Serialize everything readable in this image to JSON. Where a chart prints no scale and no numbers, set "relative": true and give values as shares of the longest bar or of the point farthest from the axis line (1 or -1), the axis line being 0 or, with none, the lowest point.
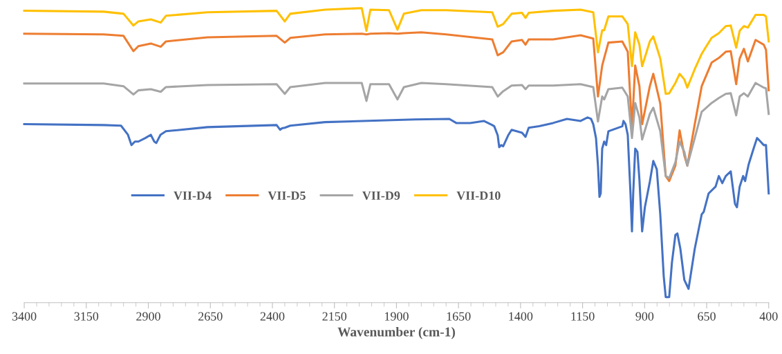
{
  "chart_data": {
    "type": "line",
    "relative": true,
    "xlabel": "Wavenumber (cm-1)",
    "xlim": [
      3400,
      400
    ],
    "xticks": [
      3400,
      {
        "value": 3350,
        "label": null
      },
      {
        "value": 3300,
        "label": null
      },
      {
        "value": 3250,
        "label": null
      },
      {
        "value": 3200,
        "label": null
      },
      3150,
      {
        "value": 3100,
        "label": null
      },
      {
        "value": 3050,
        "label": null
      },
      {
        "value": 3000,
        "label": null
      },
      {
        "value": 2950,
        "label": null
      },
      2900,
      {
        "value": 2850,
        "label": null
      },
      {
        "value": 2800,
        "label": null
      },
      {
        "value": 2750,
        "label": null
      },
      {
        "value": 2700,
        "label": null
      },
      2650,
      {
        "value": 2600,
        "label": null
      },
      {
        "value": 2550,
        "label": null
      },
      {
        "value": 2500,
        "label": null
      },
      {
        "value": 2450,
        "label": null
      },
      2400,
      {
        "value": 2350,
        "label": null
      },
      {
        "value": 2300,
        "label": null
      },
      {
        "value": 2250,
        "label": null
      },
      {
        "value": 2200,
        "label": null
      },
      2150,
      {
        "value": 2100,
        "label": null
      },
      {
        "value": 2050,
        "label": null
      },
      {
        "value": 2000,
        "label": null
      },
      {
        "value": 1950,
        "label": null
      },
      1900,
      {
        "value": 1850,
        "label": null
      },
      {
        "value": 1800,
        "label": null
      },
      {
        "value": 1750,
        "label": null
      },
      {
        "value": 1700,
        "label": null
      },
      1650,
      {
        "value": 1600,
        "label": null
      },
      {
        "value": 1550,
        "label": null
      },
      {
        "value": 1500,
        "label": null
      },
      {
        "value": 1450,
        "label": null
      },
      1400,
      {
        "value": 1350,
        "label": null
      },
      {
        "value": 1300,
        "label": null
      },
      {
        "value": 1250,
        "label": null
      },
      {
        "value": 1200,
        "label": null
      },
      1150,
      {
        "value": 1100,
        "label": null
      },
      {
        "value": 1050,
        "label": null
      },
      {
        "value": 1000,
        "label": null
      },
      {
        "value": 950,
        "label": null
      },
      900,
      {
        "value": 850,
        "label": null
      },
      {
        "value": 800,
        "label": null
      },
      {
        "value": 750,
        "label": null
      },
      {
        "value": 700,
        "label": null
      },
      650,
      {
        "value": 600,
        "label": null
      },
      {
        "value": 550,
        "label": null
      },
      {
        "value": 500,
        "label": null
      },
      {
        "value": 450,
        "label": null
      },
      400
    ],
    "grid": false,
    "legend": "left",
    "tick_labels": "x",
    "x": [
      3400,
      3080,
      3000,
      2960,
      2940,
      2890,
      2850,
      2829,
      2662,
      2383,
      2350,
      2328,
      2188,
      2040,
      2021,
      2005,
      1930,
      1896,
      1870,
      1800,
      1700,
      1514,
      1492,
      1470,
      1436,
      1394,
      1380,
      1367,
      1269,
      1158,
      1107,
      1088,
      1071,
      1063,
      1046,
      990,
      968,
      951,
      938,
      921,
      910,
      879,
      865,
      837,
      815,
      801,
      776,
      759,
      740,
      728,
      698,
      670,
      630,
      601,
      573,
      553,
      531,
      517,
      500,
      484,
      453,
      420,
      411,
      400
    ],
    "series": [
      {
        "name": "VII-D4",
        "color": "#4472c4",
        "x": [
          3400,
          3080,
          3010,
          2982,
          2968,
          2954,
          2940,
          2912,
          2890,
          2876,
          2868,
          2851,
          2829,
          2662,
          2383,
          2369,
          2361,
          2350,
          2328,
          2188,
          1826,
          1687,
          1659,
          1603,
          1548,
          1514,
          1506,
          1492,
          1486,
          1478,
          1470,
          1450,
          1436,
          1394,
          1380,
          1367,
          1325,
          1269,
          1213,
          1158,
          1130,
          1116,
          1107,
          1096,
          1088,
          1082,
          1077,
          1071,
          1063,
          1055,
          1046,
          990,
          985,
          977,
          968,
          957,
          951,
          946,
          938,
          929,
          921,
          910,
          899,
          879,
          865,
          851,
          837,
          823,
          815,
          801,
          790,
          776,
          768,
          756,
          740,
          723,
          698,
          670,
          662,
          642,
          614,
          601,
          587,
          573,
          553,
          536,
          528,
          517,
          503,
          495,
          481,
          461,
          447,
          433,
          420,
          411,
          400
        ],
        "values": [
          0.606,
          0.603,
          0.601,
          0.57,
          0.535,
          0.547,
          0.547,
          0.559,
          0.57,
          0.547,
          0.542,
          0.57,
          0.582,
          0.596,
          0.603,
          0.587,
          0.592,
          0.594,
          0.601,
          0.613,
          0.622,
          0.624,
          0.61,
          0.61,
          0.617,
          0.603,
          0.599,
          0.568,
          0.528,
          0.535,
          0.531,
          0.568,
          0.587,
          0.577,
          0.563,
          0.594,
          0.599,
          0.61,
          0.624,
          0.617,
          0.629,
          0.624,
          0.606,
          0.559,
          0.465,
          0.359,
          0.371,
          0.523,
          0.547,
          0.535,
          0.582,
          0.599,
          0.617,
          0.606,
          0.57,
          0.371,
          0.242,
          0.371,
          0.523,
          0.512,
          0.418,
          0.242,
          0.324,
          0.411,
          0.481,
          0.453,
          0.3,
          0.089,
          0.019,
          0.019,
          0.136,
          0.23,
          0.235,
          0.183,
          0.077,
          0.047,
          0.183,
          0.3,
          0.308,
          0.371,
          0.394,
          0.43,
          0.406,
          0.43,
          0.446,
          0.336,
          0.324,
          0.394,
          0.43,
          0.413,
          0.469,
          0.523,
          0.559,
          0.547,
          0.535,
          0.535,
          0.371
        ]
      },
      {
        "name": "VII-D5",
        "color": "#ed7d31",
        "values": [
          0.913,
          0.911,
          0.906,
          0.854,
          0.871,
          0.88,
          0.869,
          0.887,
          0.901,
          0.906,
          0.883,
          0.899,
          0.911,
          0.913,
          0.911,
          0.913,
          0.915,
          0.913,
          0.915,
          0.918,
          0.911,
          0.894,
          0.84,
          0.85,
          0.887,
          0.892,
          0.876,
          0.894,
          0.894,
          0.908,
          0.897,
          0.7,
          0.805,
          0.831,
          0.883,
          0.887,
          0.852,
          0.594,
          0.805,
          0.735,
          0.606,
          0.735,
          0.777,
          0.676,
          0.43,
          0.413,
          0.465,
          0.585,
          0.5,
          0.465,
          0.606,
          0.735,
          0.815,
          0.831,
          0.852,
          0.854,
          0.742,
          0.829,
          0.862,
          0.819,
          0.892,
          0.876,
          0.859,
          0.721
        ]
      },
      {
        "name": "VII-D9",
        "color": "#a5a5a5",
        "values": [
          0.744,
          0.744,
          0.735,
          0.707,
          0.721,
          0.725,
          0.716,
          0.732,
          0.739,
          0.742,
          0.709,
          0.732,
          0.746,
          0.746,
          0.685,
          0.742,
          0.742,
          0.69,
          0.732,
          0.746,
          0.742,
          0.732,
          0.7,
          0.718,
          0.737,
          0.739,
          0.725,
          0.737,
          0.737,
          0.742,
          0.732,
          0.615,
          0.7,
          0.69,
          0.725,
          0.73,
          0.7,
          0.559,
          0.678,
          0.629,
          0.554,
          0.641,
          0.662,
          0.582,
          0.43,
          0.423,
          0.477,
          0.547,
          0.512,
          0.465,
          0.559,
          0.648,
          0.678,
          0.695,
          0.709,
          0.711,
          0.636,
          0.7,
          0.711,
          0.7,
          0.746,
          0.73,
          0.728,
          0.641
        ]
      },
      {
        "name": "VII-D10",
        "color": "#ffc000",
        "values": [
          0.991,
          0.988,
          0.981,
          0.941,
          0.955,
          0.962,
          0.951,
          0.974,
          0.986,
          0.991,
          0.955,
          0.981,
          0.995,
          1,
          0.923,
          0.995,
          0.993,
          0.927,
          0.981,
          0.993,
          0.993,
          0.986,
          0.937,
          0.946,
          0.981,
          0.984,
          0.967,
          0.984,
          0.991,
          0.995,
          0.986,
          0.85,
          0.925,
          0.925,
          0.972,
          0.972,
          0.946,
          0.803,
          0.918,
          0.876,
          0.803,
          0.887,
          0.904,
          0.829,
          0.709,
          0.711,
          0.746,
          0.777,
          0.758,
          0.73,
          0.793,
          0.845,
          0.899,
          0.915,
          0.939,
          0.941,
          0.866,
          0.923,
          0.939,
          0.934,
          0.977,
          0.977,
          0.972,
          0.887
        ]
      }
    ]
  }
}
